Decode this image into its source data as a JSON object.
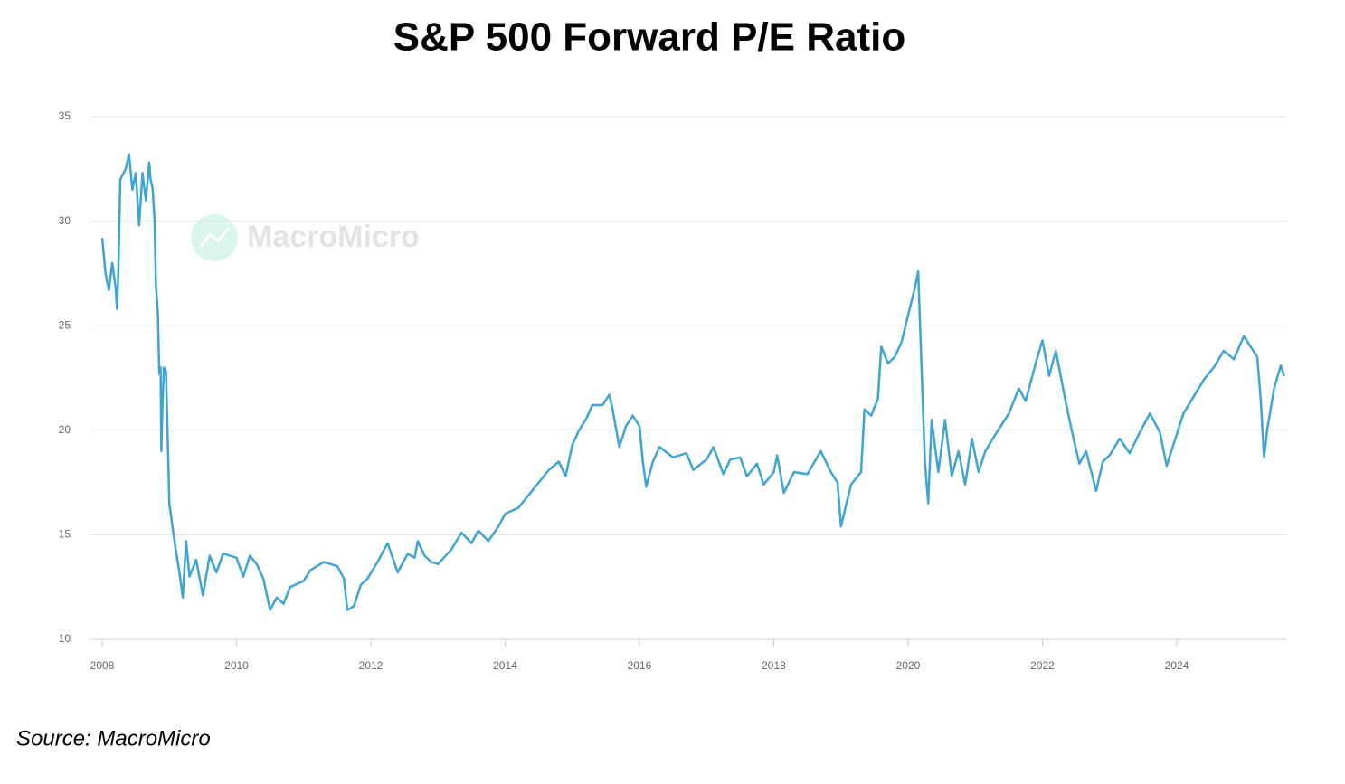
{
  "chart_data": {
    "type": "line",
    "title": "S&P 500 Forward P/E Ratio",
    "source": "Source: MacroMicro",
    "watermark": "MacroMicro",
    "x": [
      2008.0,
      2008.05,
      2008.1,
      2008.15,
      2008.2,
      2008.22,
      2008.24,
      2008.27,
      2008.35,
      2008.4,
      2008.45,
      2008.5,
      2008.55,
      2008.6,
      2008.65,
      2008.7,
      2008.72,
      2008.75,
      2008.78,
      2008.8,
      2008.83,
      2008.85,
      2008.87,
      2008.88,
      2008.9,
      2008.92,
      2008.95,
      2009.0,
      2009.05,
      2009.1,
      2009.15,
      2009.2,
      2009.25,
      2009.3,
      2009.4,
      2009.5,
      2009.6,
      2009.7,
      2009.8,
      2010.0,
      2010.1,
      2010.2,
      2010.3,
      2010.4,
      2010.5,
      2010.6,
      2010.7,
      2010.8,
      2011.0,
      2011.1,
      2011.3,
      2011.5,
      2011.6,
      2011.65,
      2011.75,
      2011.85,
      2011.95,
      2012.1,
      2012.25,
      2012.4,
      2012.55,
      2012.65,
      2012.7,
      2012.8,
      2012.9,
      2013.0,
      2013.2,
      2013.35,
      2013.5,
      2013.6,
      2013.75,
      2013.9,
      2014.0,
      2014.2,
      2014.35,
      2014.5,
      2014.65,
      2014.8,
      2014.9,
      2015.0,
      2015.1,
      2015.2,
      2015.3,
      2015.45,
      2015.55,
      2015.6,
      2015.7,
      2015.8,
      2015.9,
      2016.0,
      2016.05,
      2016.1,
      2016.2,
      2016.3,
      2016.5,
      2016.7,
      2016.8,
      2017.0,
      2017.1,
      2017.25,
      2017.35,
      2017.5,
      2017.6,
      2017.75,
      2017.85,
      2018.0,
      2018.05,
      2018.15,
      2018.3,
      2018.5,
      2018.7,
      2018.85,
      2018.95,
      2019.0,
      2019.15,
      2019.3,
      2019.35,
      2019.45,
      2019.55,
      2019.6,
      2019.7,
      2019.8,
      2019.9,
      2020.0,
      2020.1,
      2020.15,
      2020.2,
      2020.25,
      2020.3,
      2020.35,
      2020.45,
      2020.55,
      2020.65,
      2020.75,
      2020.85,
      2020.95,
      2021.05,
      2021.15,
      2021.3,
      2021.5,
      2021.65,
      2021.75,
      2021.9,
      2022.0,
      2022.1,
      2022.2,
      2022.35,
      2022.45,
      2022.55,
      2022.65,
      2022.8,
      2022.9,
      2023.0,
      2023.15,
      2023.3,
      2023.45,
      2023.6,
      2023.75,
      2023.85,
      2023.95,
      2024.1,
      2024.25,
      2024.4,
      2024.55,
      2024.7,
      2024.85,
      2025.0,
      2025.1,
      2025.2,
      2025.25,
      2025.3,
      2025.35,
      2025.45,
      2025.55,
      2025.6
    ],
    "series": [
      {
        "name": "S&P 500 Forward P/E",
        "color": "#3fa4d3",
        "values": [
          29.2,
          27.5,
          26.7,
          28.0,
          26.8,
          25.8,
          27.5,
          32.0,
          32.5,
          33.2,
          31.5,
          32.3,
          29.8,
          32.3,
          31.0,
          32.8,
          32.0,
          31.6,
          30.0,
          27.0,
          25.5,
          22.7,
          23.0,
          19.0,
          21.5,
          23.0,
          22.8,
          16.5,
          15.3,
          14.2,
          13.2,
          12.0,
          14.7,
          13.0,
          13.8,
          12.1,
          14.0,
          13.2,
          14.1,
          13.9,
          13.0,
          14.0,
          13.6,
          12.9,
          11.4,
          12.0,
          11.7,
          12.5,
          12.8,
          13.3,
          13.7,
          13.5,
          12.9,
          11.4,
          11.6,
          12.6,
          12.9,
          13.7,
          14.6,
          13.2,
          14.1,
          13.9,
          14.7,
          14.0,
          13.7,
          13.6,
          14.3,
          15.1,
          14.6,
          15.2,
          14.7,
          15.4,
          16.0,
          16.3,
          16.9,
          17.5,
          18.1,
          18.5,
          17.8,
          19.3,
          20.0,
          20.5,
          21.2,
          21.2,
          21.7,
          21.0,
          19.2,
          20.2,
          20.7,
          20.2,
          18.5,
          17.3,
          18.5,
          19.2,
          18.7,
          18.9,
          18.1,
          18.6,
          19.2,
          17.9,
          18.6,
          18.7,
          17.8,
          18.4,
          17.4,
          18.0,
          18.8,
          17.0,
          18.0,
          17.9,
          19.0,
          18.0,
          17.5,
          15.4,
          17.4,
          18.0,
          21.0,
          20.7,
          21.5,
          24.0,
          23.2,
          23.5,
          24.2,
          25.5,
          26.8,
          27.6,
          23.0,
          18.5,
          16.5,
          20.5,
          18.0,
          20.5,
          17.8,
          19.0,
          17.4,
          19.6,
          18.0,
          19.0,
          19.8,
          20.8,
          22.0,
          21.4,
          23.2,
          24.3,
          22.6,
          23.8,
          21.3,
          19.8,
          18.4,
          19.0,
          17.1,
          18.5,
          18.8,
          19.6,
          18.9,
          19.9,
          20.8,
          19.9,
          18.3,
          19.3,
          20.8,
          21.6,
          22.4,
          23.0,
          23.8,
          23.4,
          24.5,
          24.0,
          23.5,
          21.5,
          18.7,
          20.1,
          22.0,
          23.1,
          22.6
        ]
      }
    ],
    "xlim": [
      2008,
      2025.63
    ],
    "xticks": [
      2008,
      2010,
      2012,
      2014,
      2016,
      2018,
      2020,
      2022,
      2024
    ],
    "ylim": [
      10,
      35
    ],
    "yticks": [
      10,
      15,
      20,
      25,
      30,
      35
    ],
    "grid": true
  }
}
